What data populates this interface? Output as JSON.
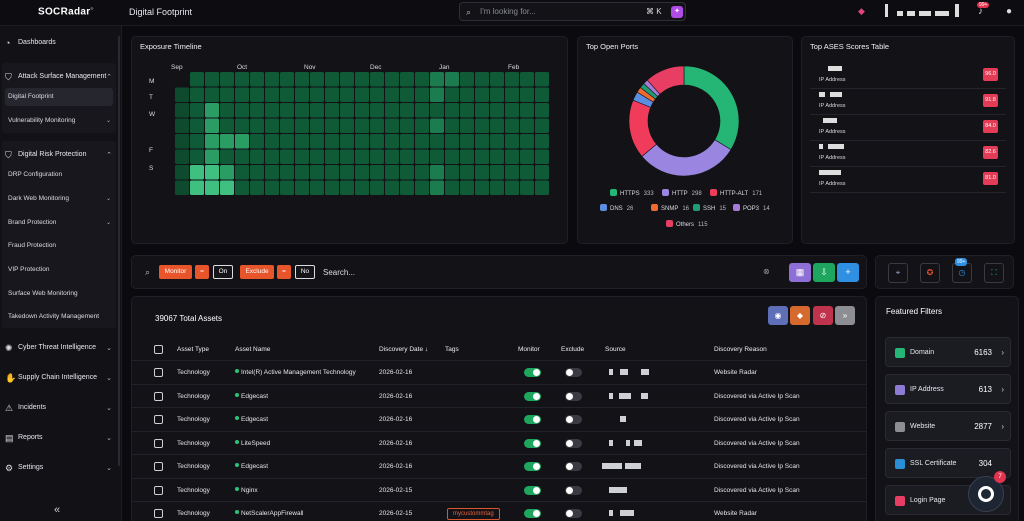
{
  "app": {
    "logo": "SOCRadar",
    "logo_mark": "®",
    "page_title": "Digital Footprint"
  },
  "search": {
    "placeholder": "I'm looking for...",
    "shortcut": "⌘ K",
    "ai_glyph": "✦"
  },
  "notifications": {
    "badge": "99+"
  },
  "sidebar": {
    "dashboards": "Dashboards",
    "asm": "Attack Surface Management",
    "asm_items": [
      "Digital Footprint",
      "Vulnerability Monitoring"
    ],
    "drp": "Digital Risk Protection",
    "drp_items": [
      "DRP Configuration",
      "Dark Web Monitoring",
      "Brand Protection",
      "Fraud Protection",
      "VIP Protection",
      "Surface Web Monitoring",
      "Takedown Activity Management"
    ],
    "cti": "Cyber Threat Intelligence",
    "sci": "Supply Chain Intelligence",
    "incidents": "Incidents",
    "reports": "Reports",
    "settings": "Settings",
    "collapse_glyph": "«"
  },
  "exposure": {
    "title": "Exposure Timeline",
    "months": [
      "Sep",
      "Oct",
      "Nov",
      "Dec",
      "Jan",
      "Feb"
    ],
    "days": [
      "M",
      "T",
      "W",
      "F",
      "S"
    ]
  },
  "ports": {
    "title": "Top Open Ports"
  },
  "chart_data": {
    "type": "pie",
    "title": "Top Open Ports",
    "categories": [
      "HTTPS",
      "HTTP",
      "HTTP-ALT",
      "DNS",
      "SNMP",
      "SSH",
      "POP3",
      "Others"
    ],
    "values": [
      333,
      298,
      171,
      26,
      16,
      15,
      14,
      115
    ],
    "colors": [
      "#25b574",
      "#9a86e0",
      "#f03c5a",
      "#5d8de0",
      "#ee6a2e",
      "#1f9c74",
      "#a67cd8",
      "#e83e63"
    ]
  },
  "ases": {
    "title": "Top ASES Scores Table",
    "ip_label": "IP Address",
    "scores": [
      "96.0",
      "91.8",
      "84.0",
      "82.6",
      "81.0"
    ]
  },
  "filterbar": {
    "monitor": "Monitor",
    "eq": "=",
    "on": "On",
    "exclude": "Exclude",
    "no": "No",
    "placeholder": "Search...",
    "clear": "⊗"
  },
  "assets": {
    "total": "39067 Total Assets",
    "headers": [
      "Asset Type",
      "Asset Name",
      "Discovery Date ↓",
      "Tags",
      "Monitor",
      "Exclude",
      "Source",
      "Discovery Reason"
    ],
    "rows": [
      {
        "type": "Technology",
        "name": "Intel(R) Active Management Technology",
        "date": "2026-02-16",
        "tag": "",
        "reason": "Website Radar"
      },
      {
        "type": "Technology",
        "name": "Edgecast",
        "date": "2026-02-16",
        "tag": "",
        "reason": "Discovered via Active Ip Scan"
      },
      {
        "type": "Technology",
        "name": "Edgecast",
        "date": "2026-02-16",
        "tag": "",
        "reason": "Discovered via Active Ip Scan"
      },
      {
        "type": "Technology",
        "name": "LiteSpeed",
        "date": "2026-02-16",
        "tag": "",
        "reason": "Discovered via Active Ip Scan"
      },
      {
        "type": "Technology",
        "name": "Edgecast",
        "date": "2026-02-16",
        "tag": "",
        "reason": "Discovered via Active Ip Scan"
      },
      {
        "type": "Technology",
        "name": "Nginx",
        "date": "2026-02-15",
        "tag": "",
        "reason": "Discovered via Active Ip Scan"
      },
      {
        "type": "Technology",
        "name": "NetScalerAppFirewall",
        "date": "2026-02-15",
        "tag": "mycustommtag",
        "reason": "Website Radar"
      }
    ]
  },
  "featured": {
    "title": "Featured Filters",
    "items": [
      {
        "name": "Domain",
        "count": "6163",
        "color": "#25b574"
      },
      {
        "name": "IP Address",
        "count": "613",
        "color": "#8e7bd6"
      },
      {
        "name": "Website",
        "count": "2877",
        "color": "#8d8d94"
      },
      {
        "name": "SSL Certificate",
        "count": "304",
        "color": "#2a8fd4"
      },
      {
        "name": "Login Page",
        "count": "",
        "color": "#e83e63"
      }
    ]
  },
  "chat": {
    "badge": "7"
  },
  "colors": {
    "accent": "#e9552a",
    "success": "#1ea55e",
    "danger": "#e43b56"
  }
}
